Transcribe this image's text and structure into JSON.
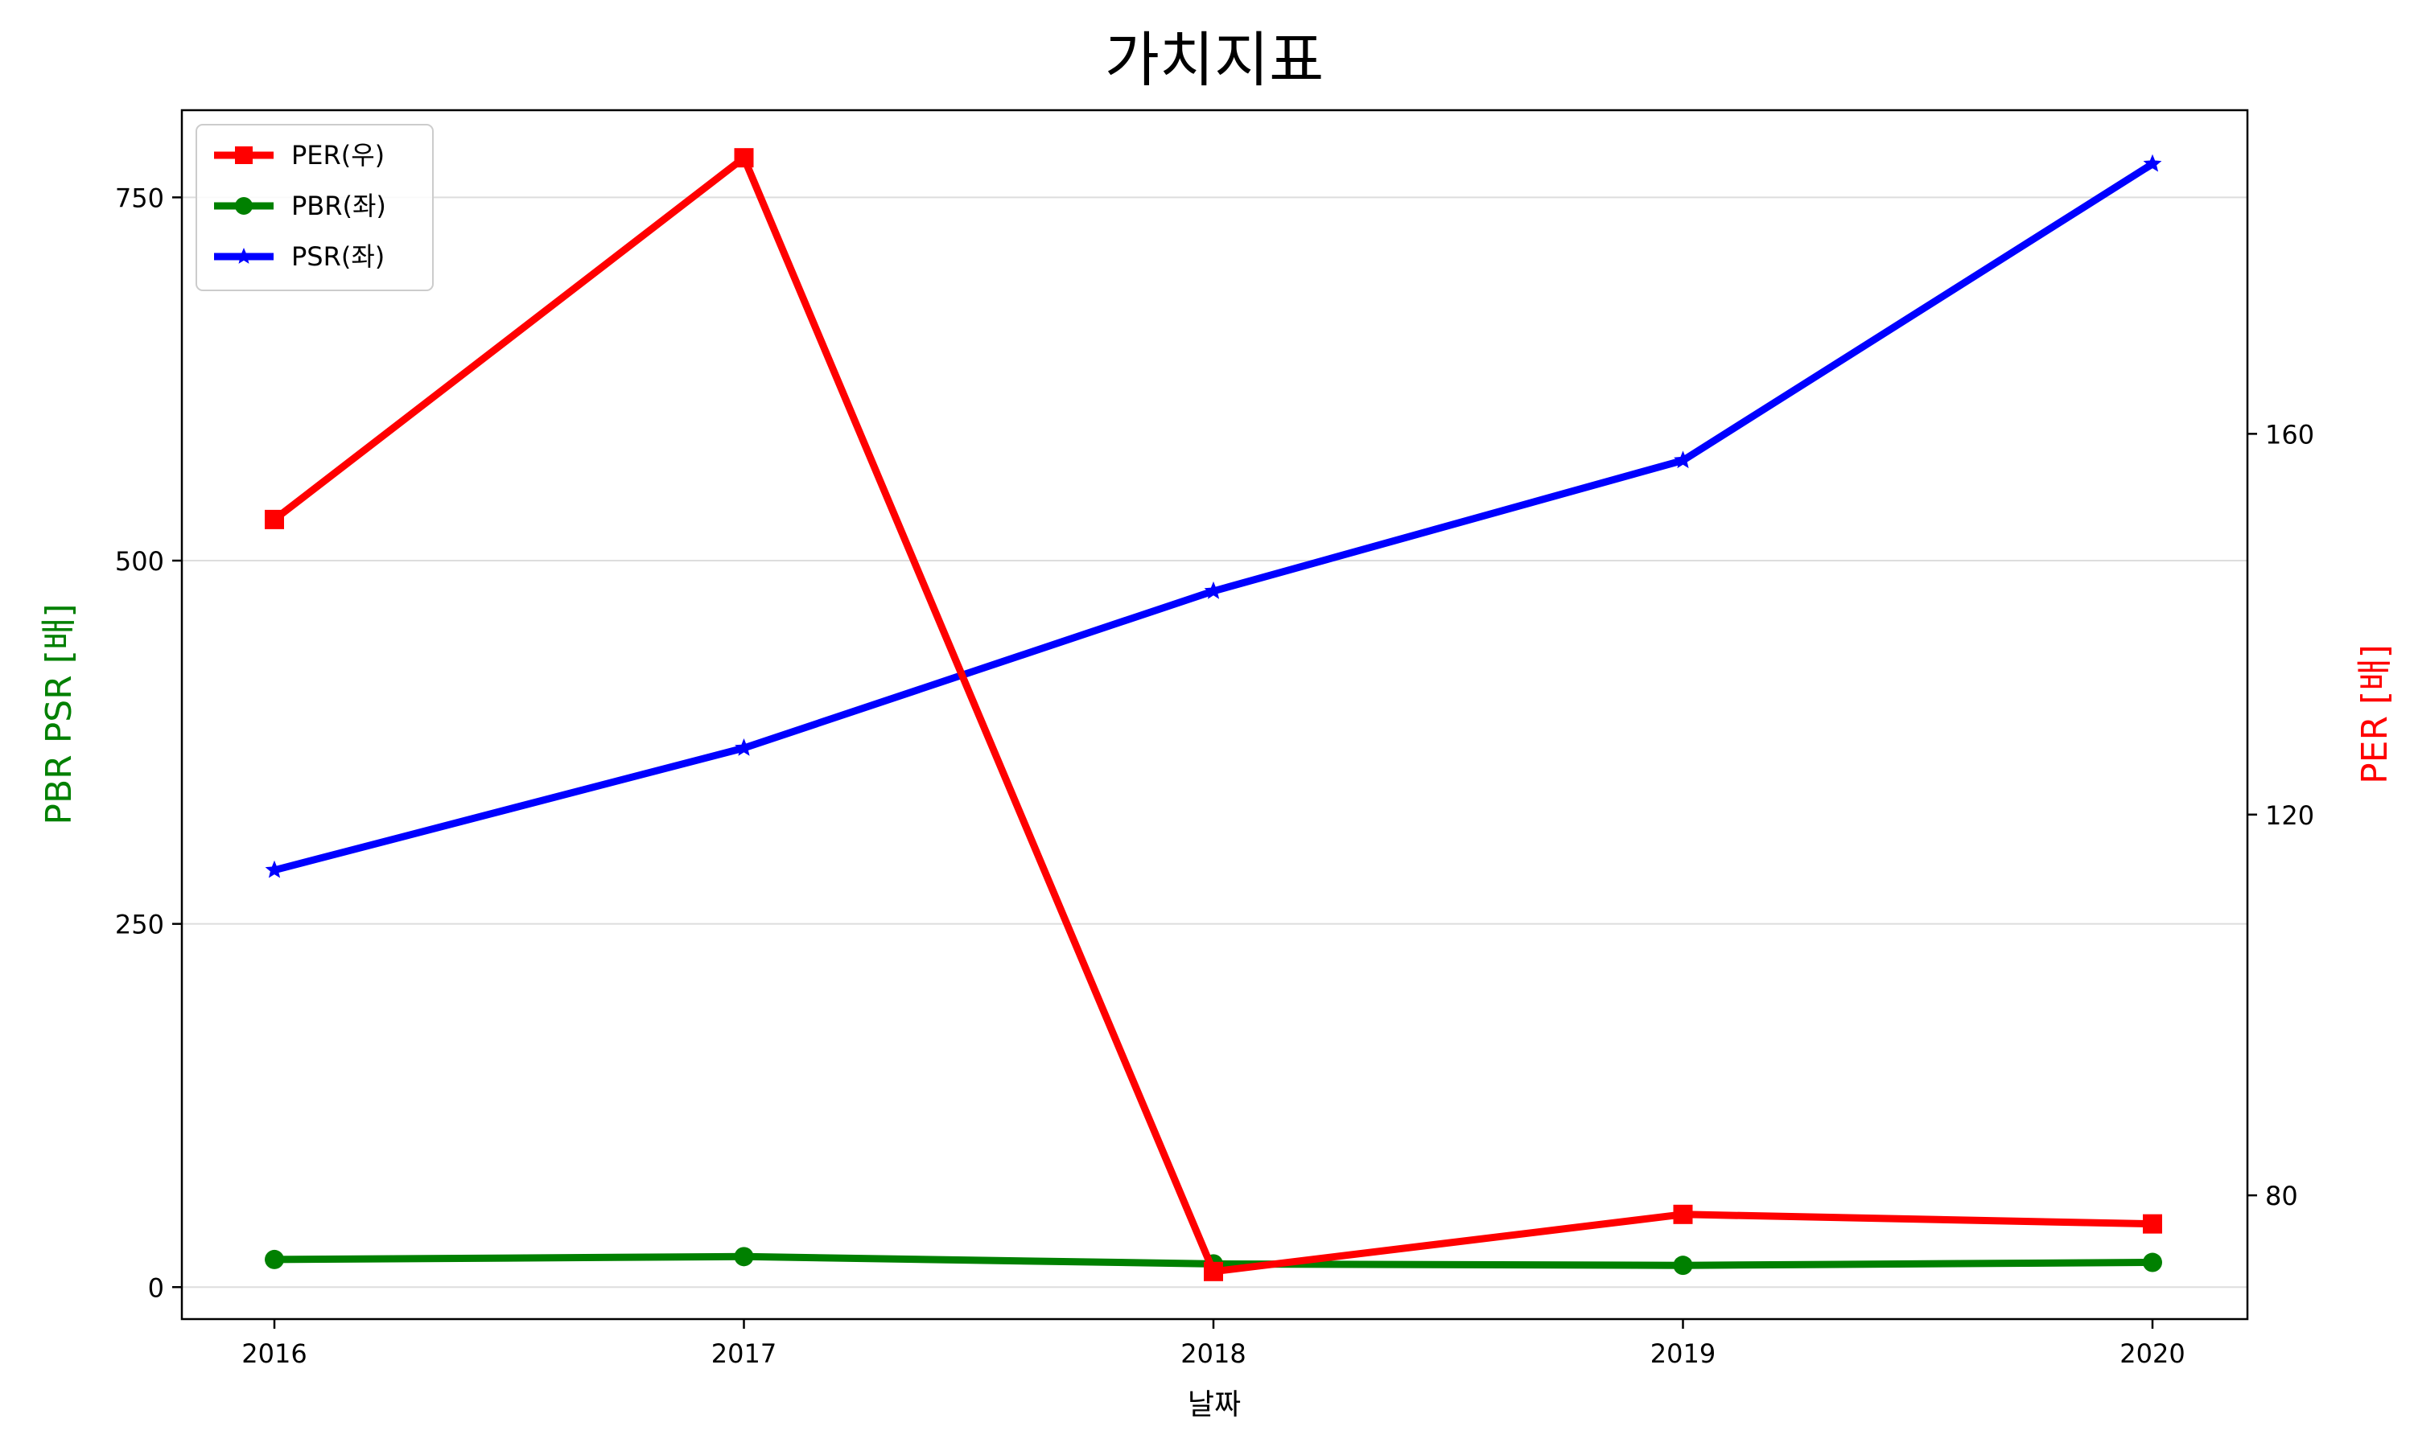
{
  "chart_data": {
    "type": "line",
    "title": "가치지표",
    "xlabel": "날짜",
    "ylabel_left": "PBR PSR [배]",
    "ylabel_right": "PER [배]",
    "categories": [
      "2016",
      "2017",
      "2018",
      "2019",
      "2020"
    ],
    "left_axis": {
      "ylim": [
        -22,
        810
      ],
      "ticks": [
        0,
        250,
        500,
        750
      ]
    },
    "right_axis": {
      "ylim": [
        67,
        194
      ],
      "ticks": [
        80,
        120,
        160
      ]
    },
    "legend_position": "top-left",
    "grid": "horizontal",
    "series": [
      {
        "name": "PER(우)",
        "axis": "right",
        "color": "#ff0000",
        "marker": "square",
        "values": [
          151,
          189,
          72,
          78,
          77
        ]
      },
      {
        "name": "PBR(좌)",
        "axis": "left",
        "color": "#008000",
        "marker": "circle",
        "values": [
          19,
          21,
          16,
          15,
          17
        ]
      },
      {
        "name": "PSR(좌)",
        "axis": "left",
        "color": "#0000ff",
        "marker": "star",
        "values": [
          287,
          371,
          479,
          569,
          773
        ]
      }
    ]
  }
}
